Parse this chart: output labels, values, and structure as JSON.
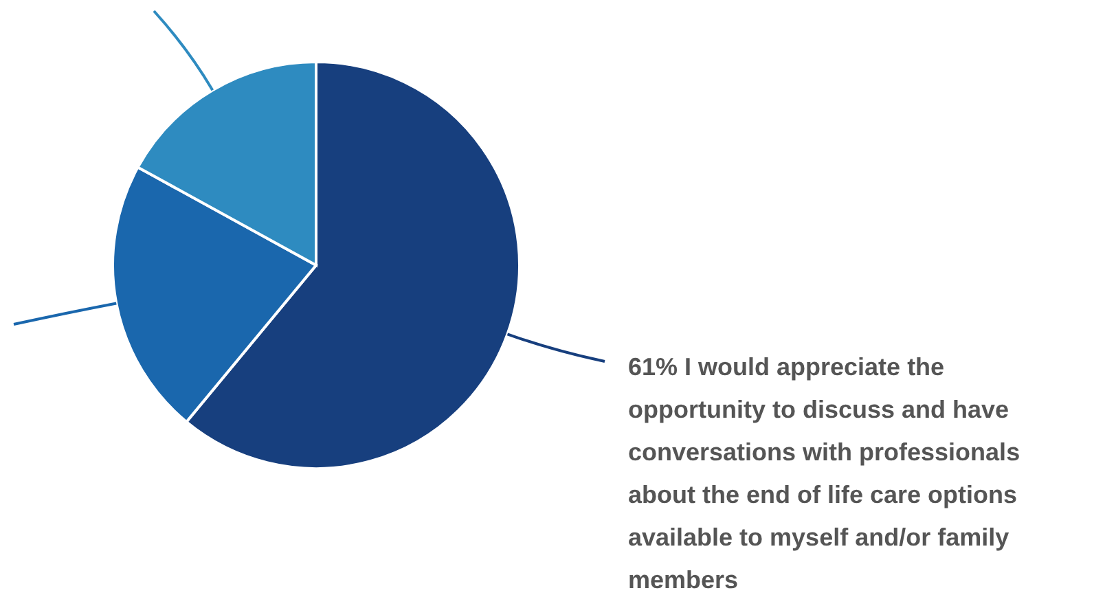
{
  "chart_data": {
    "type": "pie",
    "categories": [
      "I would appreciate the opportunity to discuss and have conversations with professionals about the end of life care options available to myself and/or family members",
      null,
      null
    ],
    "values": [
      61,
      22,
      17
    ],
    "colors": [
      "#173f7e",
      "#1a67ad",
      "#2e8bc0"
    ],
    "value_labels": [
      "61%",
      null,
      null
    ]
  }
}
